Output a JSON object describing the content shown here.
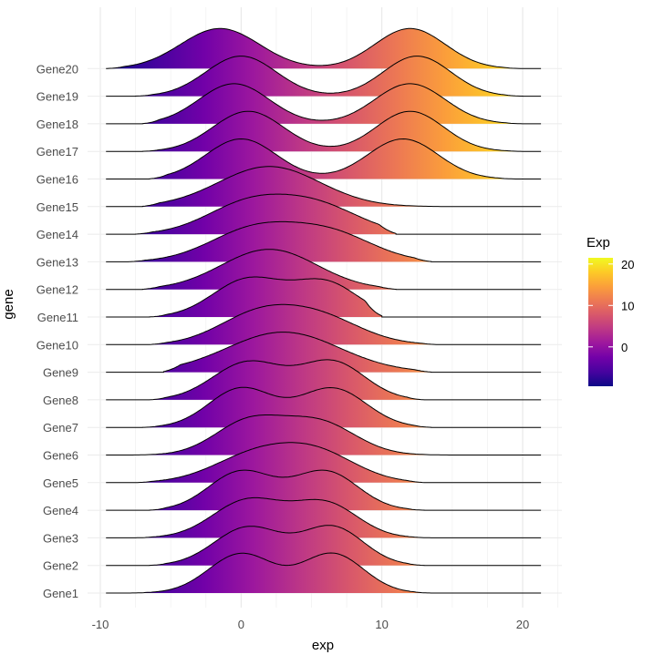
{
  "chart_data": {
    "type": "ridgeline",
    "title": "",
    "xlabel": "exp",
    "ylabel": "gene",
    "xlim": [
      -10,
      22
    ],
    "x_ticks": [
      -10,
      0,
      10,
      20
    ],
    "x_tick_labels": [
      "-10",
      "0",
      "10",
      "20"
    ],
    "grid": true,
    "colormap": "plasma",
    "legend": {
      "title": "Exp",
      "position": "right",
      "range": [
        -9.5,
        21.5
      ],
      "ticks": [
        0,
        10,
        20
      ],
      "tick_labels": [
        "0",
        "10",
        "20"
      ],
      "colors": [
        "#0d0887",
        "#46039f",
        "#7201a8",
        "#9c179e",
        "#bd3786",
        "#d8576b",
        "#ed7953",
        "#fb9f3a",
        "#fdca26",
        "#f0f921"
      ]
    },
    "genes": [
      {
        "name": "Gene1",
        "range": [
          -8,
          13.5
        ],
        "components": [
          {
            "mu": 0,
            "sigma": 2.3,
            "w": 1
          },
          {
            "mu": 6.5,
            "sigma": 2.2,
            "w": 1
          }
        ]
      },
      {
        "name": "Gene2",
        "range": [
          -6.5,
          13
        ],
        "components": [
          {
            "mu": 0.5,
            "sigma": 2.4,
            "w": 1
          },
          {
            "mu": 6.5,
            "sigma": 2.2,
            "w": 1
          }
        ]
      },
      {
        "name": "Gene3",
        "range": [
          -7.5,
          13.5
        ],
        "components": [
          {
            "mu": 0.5,
            "sigma": 2.5,
            "w": 1
          },
          {
            "mu": 6.0,
            "sigma": 2.3,
            "w": 0.9
          }
        ]
      },
      {
        "name": "Gene4",
        "range": [
          -6.5,
          13
        ],
        "components": [
          {
            "mu": 0,
            "sigma": 2.3,
            "w": 1
          },
          {
            "mu": 6.0,
            "sigma": 2.3,
            "w": 1
          }
        ]
      },
      {
        "name": "Gene5",
        "range": [
          -7.5,
          13
        ],
        "components": [
          {
            "mu": 1,
            "sigma": 3.0,
            "w": 1
          },
          {
            "mu": 5.5,
            "sigma": 2.8,
            "w": 1
          }
        ]
      },
      {
        "name": "Gene6",
        "range": [
          -8,
          15.5
        ],
        "components": [
          {
            "mu": 0.5,
            "sigma": 2.4,
            "w": 1
          },
          {
            "mu": 5.5,
            "sigma": 2.6,
            "w": 1
          }
        ]
      },
      {
        "name": "Gene7",
        "range": [
          -7,
          13.5
        ],
        "components": [
          {
            "mu": 0,
            "sigma": 2.3,
            "w": 1
          },
          {
            "mu": 6.5,
            "sigma": 2.4,
            "w": 1
          }
        ]
      },
      {
        "name": "Gene8",
        "range": [
          -6.5,
          13
        ],
        "components": [
          {
            "mu": 0.5,
            "sigma": 2.5,
            "w": 1
          },
          {
            "mu": 6.5,
            "sigma": 2.3,
            "w": 1
          }
        ]
      },
      {
        "name": "Gene9",
        "range": [
          -5.5,
          13.5
        ],
        "components": [
          {
            "mu": 3.0,
            "sigma": 4.0,
            "w": 1
          }
        ]
      },
      {
        "name": "Gene10",
        "range": [
          -6.5,
          14
        ],
        "components": [
          {
            "mu": 1,
            "sigma": 2.8,
            "w": 1
          },
          {
            "mu": 5.5,
            "sigma": 3.0,
            "w": 1
          }
        ]
      },
      {
        "name": "Gene11",
        "range": [
          -6.5,
          10
        ],
        "components": [
          {
            "mu": 0.5,
            "sigma": 2.5,
            "w": 1
          },
          {
            "mu": 6.0,
            "sigma": 2.3,
            "w": 0.9
          }
        ]
      },
      {
        "name": "Gene12",
        "range": [
          -7,
          11
        ],
        "components": [
          {
            "mu": 2.0,
            "sigma": 3.4,
            "w": 1
          }
        ]
      },
      {
        "name": "Gene13",
        "range": [
          -8,
          13.5
        ],
        "components": [
          {
            "mu": 1,
            "sigma": 3.2,
            "w": 1
          },
          {
            "mu": 6.5,
            "sigma": 3.0,
            "w": 0.8
          }
        ]
      },
      {
        "name": "Gene14",
        "range": [
          -7.5,
          11
        ],
        "components": [
          {
            "mu": 0.5,
            "sigma": 3.0,
            "w": 1
          },
          {
            "mu": 5.5,
            "sigma": 3.0,
            "w": 0.9
          }
        ]
      },
      {
        "name": "Gene15",
        "range": [
          -7,
          21
        ],
        "components": [
          {
            "mu": 2.0,
            "sigma": 3.6,
            "w": 1
          }
        ]
      },
      {
        "name": "Gene16",
        "range": [
          -6.5,
          19.5
        ],
        "components": [
          {
            "mu": 0,
            "sigma": 2.5,
            "w": 1
          },
          {
            "mu": 11.5,
            "sigma": 2.5,
            "w": 1
          }
        ]
      },
      {
        "name": "Gene17",
        "range": [
          -7,
          20
        ],
        "components": [
          {
            "mu": 0.5,
            "sigma": 2.5,
            "w": 1
          },
          {
            "mu": 12,
            "sigma": 2.4,
            "w": 1
          }
        ]
      },
      {
        "name": "Gene18",
        "range": [
          -7,
          20
        ],
        "components": [
          {
            "mu": -0.5,
            "sigma": 2.5,
            "w": 1
          },
          {
            "mu": 12,
            "sigma": 2.5,
            "w": 1
          }
        ]
      },
      {
        "name": "Gene19",
        "range": [
          -7.5,
          20
        ],
        "components": [
          {
            "mu": 0,
            "sigma": 2.5,
            "w": 1
          },
          {
            "mu": 12.5,
            "sigma": 2.4,
            "w": 1
          }
        ]
      },
      {
        "name": "Gene20",
        "range": [
          -9.5,
          20
        ],
        "components": [
          {
            "mu": -1.5,
            "sigma": 2.8,
            "w": 1
          },
          {
            "mu": 12,
            "sigma": 2.5,
            "w": 1
          }
        ]
      }
    ]
  }
}
